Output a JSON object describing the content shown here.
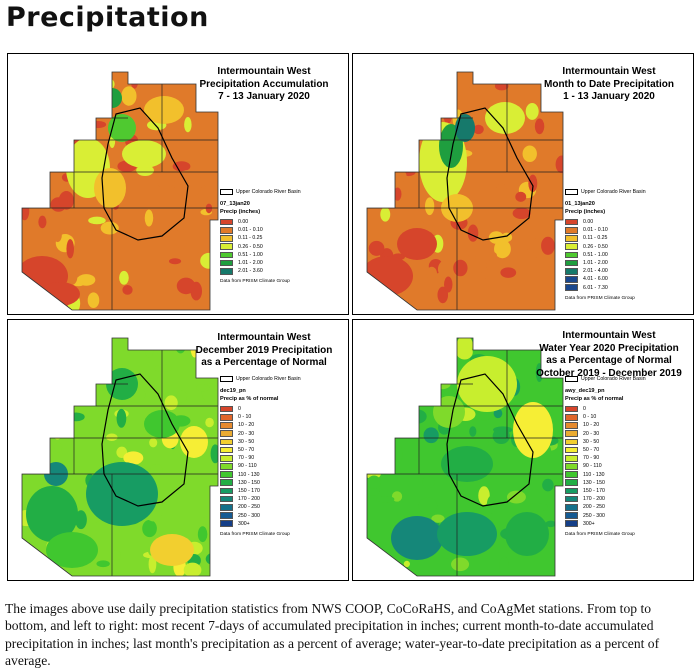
{
  "page_title": "Precipitation",
  "colors": {
    "accumulation_ramp": [
      "#d6452b",
      "#e07a2a",
      "#f2c02c",
      "#d9ee35",
      "#4fc930",
      "#1f9e3f",
      "#16796b",
      "#19478e"
    ],
    "percent_ramp": [
      "#d6452b",
      "#e0662b",
      "#e58a2f",
      "#eaab32",
      "#f2cf2f",
      "#f6ee35",
      "#c8ee2e",
      "#7fda2b",
      "#40c72f",
      "#22ae45",
      "#179c63",
      "#158779",
      "#15708a",
      "#155a92",
      "#153f88",
      "#16287a"
    ]
  },
  "panels": [
    {
      "title_lines": [
        "Intermountain West",
        "Precipitation Accumulation",
        "7 - 13 January 2020"
      ],
      "basin_label": "Upper Colorado River Basin",
      "layer_name": "07_13jan20",
      "legend_label": "Precip (inches)",
      "ramp": "accumulation_ramp",
      "entries": [
        "0.00",
        "0.01 - 0.10",
        "0.11 - 0.25",
        "0.26 - 0.50",
        "0.51 - 1.00",
        "1.01 - 2.00",
        "2.01 - 3.60"
      ],
      "credit": "Data from PRISM Climate Group"
    },
    {
      "title_lines": [
        "Intermountain West",
        "Month to Date Precipitation",
        "1 - 13 January 2020"
      ],
      "basin_label": "Upper Colorado River Basin",
      "layer_name": "01_13jan20",
      "legend_label": "Precip (inches)",
      "ramp": "accumulation_ramp",
      "entries": [
        "0.00",
        "0.01 - 0.10",
        "0.11 - 0.25",
        "0.26 - 0.50",
        "0.51 - 1.00",
        "1.01 - 2.00",
        "2.01 - 4.00",
        "4.01 - 6.00",
        "6.01 - 7.30"
      ],
      "credit": "Data from PRISM Climate Group"
    },
    {
      "title_lines": [
        "Intermountain West",
        "December 2019 Precipitation",
        "as a Percentage of Normal"
      ],
      "basin_label": "Upper Colorado River Basin",
      "layer_name": "dec19_pn",
      "legend_label": "Precip as % of normal",
      "ramp": "percent_ramp",
      "entries": [
        "0",
        "0 - 10",
        "10 - 20",
        "20 - 30",
        "30 - 50",
        "50 - 70",
        "70 - 90",
        "90 - 110",
        "110 - 130",
        "130 - 150",
        "150 - 170",
        "170 - 200",
        "200 - 250",
        "250 - 300",
        "300+"
      ],
      "credit": "Data from PRISM Climate Group"
    },
    {
      "title_lines": [
        "Intermountain West",
        "Water Year 2020 Precipitation",
        "as a Percentage of Normal",
        "October 2019 - December 2019"
      ],
      "basin_label": "Upper Colorado River Basin",
      "layer_name": "awy_dec19_pn",
      "legend_label": "Precip as % of normal",
      "ramp": "percent_ramp",
      "entries": [
        "0",
        "0 - 10",
        "10 - 20",
        "20 - 30",
        "30 - 50",
        "50 - 70",
        "70 - 90",
        "90 - 110",
        "110 - 130",
        "130 - 150",
        "150 - 170",
        "170 - 200",
        "200 - 250",
        "250 - 300",
        "300+"
      ],
      "credit": "Data from PRISM Climate Group"
    }
  ],
  "description": "The images above use daily precipitation statistics from NWS COOP, CoCoRaHS, and CoAgMet stations. From top to bottom, and left to right: most recent 7-days of accumulated precipitation in inches; current month-to-date accumulated precipitation in inches; last month's precipitation as a percent of average; water-year-to-date precipitation as a percent of average."
}
